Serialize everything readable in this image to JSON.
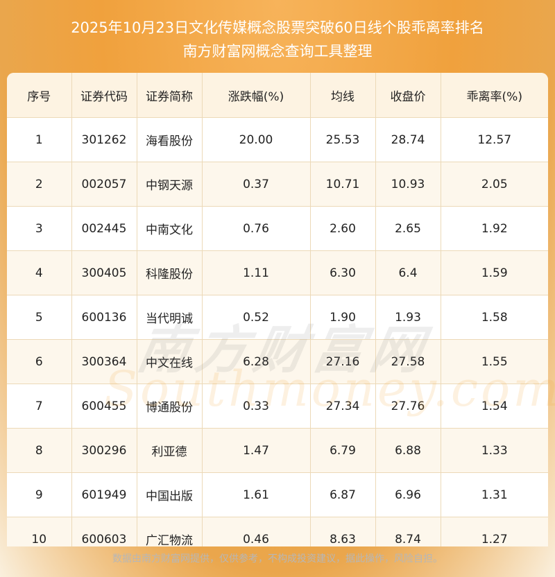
{
  "title_line1": "2025年10月23日文化传媒概念股票突破60日线个股乖离率排名",
  "title_line2": "南方财富网概念查询工具整理",
  "table": {
    "headers": [
      "序号",
      "证券代码",
      "证券简称",
      "涨跌幅(%)",
      "均线",
      "收盘价",
      "乖离率(%)"
    ],
    "rows": [
      [
        "1",
        "301262",
        "海看股份",
        "20.00",
        "25.53",
        "28.74",
        "12.57"
      ],
      [
        "2",
        "002057",
        "中钢天源",
        "0.37",
        "10.71",
        "10.93",
        "2.05"
      ],
      [
        "3",
        "002445",
        "中南文化",
        "0.76",
        "2.60",
        "2.65",
        "1.92"
      ],
      [
        "4",
        "300405",
        "科隆股份",
        "1.11",
        "6.30",
        "6.4",
        "1.59"
      ],
      [
        "5",
        "600136",
        "当代明诚",
        "0.52",
        "1.90",
        "1.93",
        "1.58"
      ],
      [
        "6",
        "300364",
        "中文在线",
        "6.28",
        "27.16",
        "27.58",
        "1.55"
      ],
      [
        "7",
        "600455",
        "博通股份",
        "0.33",
        "27.34",
        "27.76",
        "1.54"
      ],
      [
        "8",
        "300296",
        "利亚德",
        "1.47",
        "6.79",
        "6.88",
        "1.33"
      ],
      [
        "9",
        "601949",
        "中国出版",
        "1.61",
        "6.87",
        "6.96",
        "1.31"
      ],
      [
        "10",
        "600603",
        "广汇物流",
        "0.46",
        "8.63",
        "8.74",
        "1.27"
      ]
    ]
  },
  "watermark_cn": "南方财富网",
  "watermark_en": "Southmoney.com",
  "footer": "数据由南方财富网提供，仅供参考，不构成投资建议，据此操作，风险自担。"
}
